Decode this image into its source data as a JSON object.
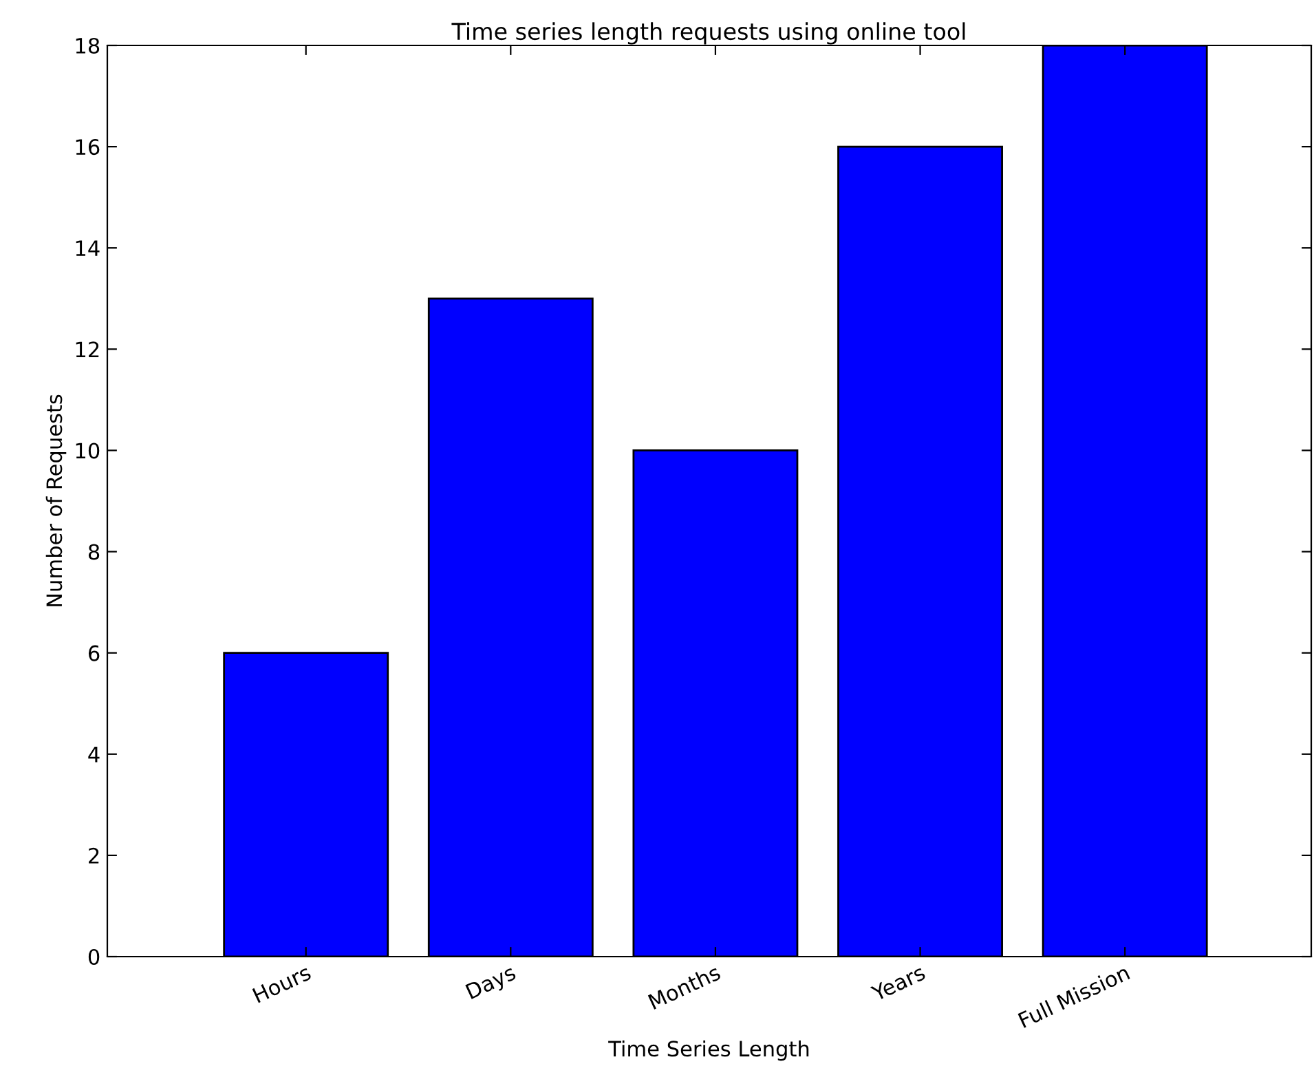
{
  "chart_data": {
    "type": "bar",
    "title": "Time series length requests using online tool",
    "xlabel": "Time Series Length",
    "ylabel": "Number of Requests",
    "categories": [
      "Hours",
      "Days",
      "Months",
      "Years",
      "Full Mission"
    ],
    "values": [
      6,
      13,
      10,
      16,
      18
    ],
    "color": "#0000ff",
    "ylim": [
      0,
      18
    ],
    "yticks": [
      0,
      2,
      4,
      6,
      8,
      10,
      12,
      14,
      16,
      18
    ],
    "grid": false,
    "legend": false
  }
}
